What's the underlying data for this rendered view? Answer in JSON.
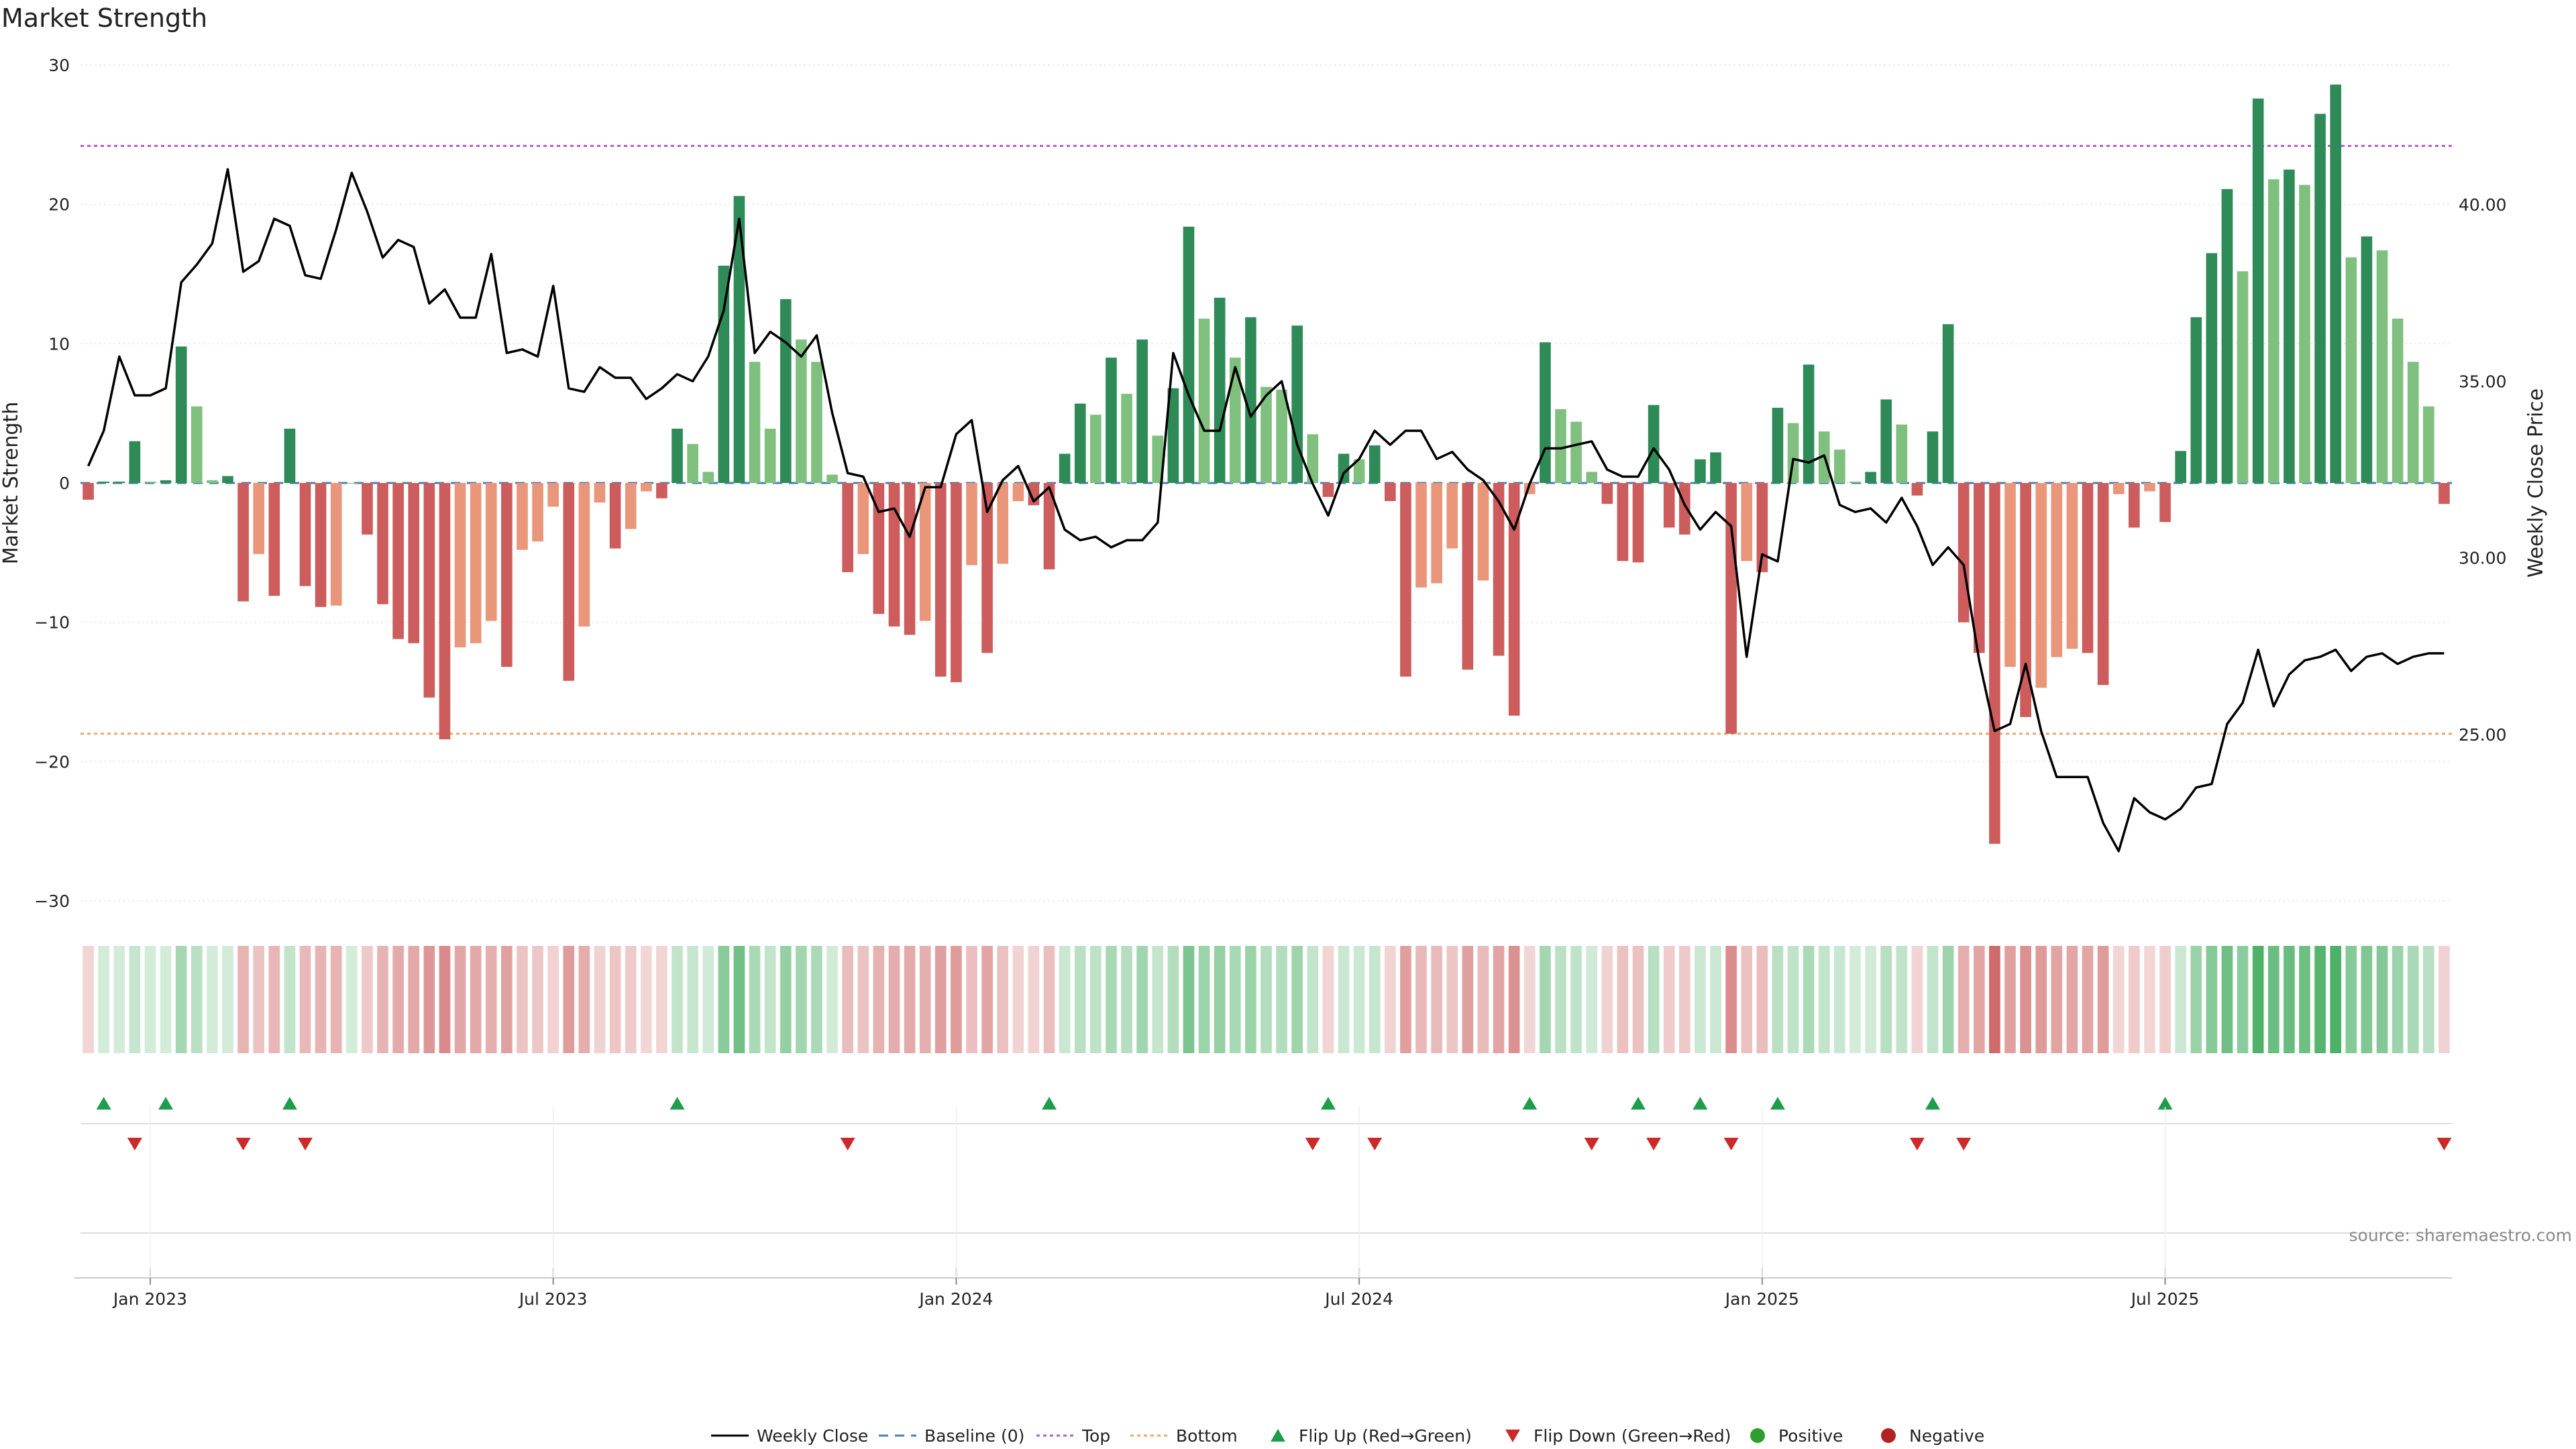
{
  "chart_data": {
    "type": "bar",
    "title": "Market Strength",
    "ylabel_left": "Market Strength",
    "ylabel_right": "Weekly Close Price",
    "ylim_left": [
      -30,
      30
    ],
    "ylim_right": [
      20,
      44
    ],
    "yticks_left": [
      30,
      20,
      10,
      0,
      -10,
      -20,
      -30
    ],
    "yticks_left_labels": [
      "30",
      "20",
      "10",
      "0",
      "−10",
      "−20",
      "−30"
    ],
    "yticks_right": [
      40,
      35,
      30,
      25
    ],
    "yticks_right_labels": [
      "40.00",
      "35.00",
      "30.00",
      "25.00"
    ],
    "xticks": [
      {
        "label": "Jan 2023",
        "index": 4
      },
      {
        "label": "Jul 2023",
        "index": 30
      },
      {
        "label": "Jan 2024",
        "index": 56
      },
      {
        "label": "Jul 2024",
        "index": 82
      },
      {
        "label": "Jan 2025",
        "index": 108
      },
      {
        "label": "Jul 2025",
        "index": 134
      }
    ],
    "top_level": 24.2,
    "bottom_level": -18.0,
    "baseline": 0,
    "strength": [
      -1.2,
      0.1,
      0.1,
      3,
      0.1,
      0.2,
      9.8,
      5.5,
      0.2,
      0.5,
      -8.5,
      -5.1,
      -8.1,
      3.9,
      -7.4,
      -8.9,
      -8.8,
      0,
      -3.7,
      -8.7,
      -11.2,
      -11.5,
      -15.4,
      -18.4,
      -11.8,
      -11.5,
      -9.9,
      -13.2,
      -4.8,
      -4.2,
      -1.7,
      -14.2,
      -10.3,
      -1.4,
      -4.7,
      -3.3,
      -0.6,
      -1.1,
      3.9,
      2.8,
      0.8,
      15.6,
      20.6,
      8.7,
      3.9,
      13.2,
      10.3,
      8.7,
      0.6,
      -6.4,
      -5.1,
      -9.4,
      -10.3,
      -10.9,
      -9.9,
      -13.9,
      -14.3,
      -5.9,
      -12.2,
      -5.8,
      -1.3,
      -1.6,
      -6.2,
      2.1,
      5.7,
      4.9,
      9,
      6.4,
      10.3,
      3.4,
      6.8,
      18.4,
      11.8,
      13.3,
      9,
      11.9,
      6.9,
      6.7,
      11.3,
      3.5,
      -1,
      2.1,
      1.7,
      2.7,
      -1.3,
      -13.9,
      -7.5,
      -7.2,
      -4.7,
      -13.4,
      -7,
      -12.4,
      -16.7,
      -0.8,
      10.1,
      5.3,
      4.4,
      0.8,
      -1.5,
      -5.6,
      -5.7,
      5.6,
      -3.2,
      -3.7,
      1.7,
      2.2,
      -18.0,
      -5.6,
      -6.4,
      5.4,
      4.3,
      8.5,
      3.7,
      2.4,
      0.1,
      0.8,
      6,
      4.2,
      -0.9,
      3.7,
      11.4,
      -10,
      -12.2,
      -25.9,
      -13.2,
      -16.8,
      -14.7,
      -12.5,
      -11.9,
      -12.2,
      -14.5,
      -0.8,
      -3.2,
      -0.6,
      -2.8,
      2.3,
      11.9,
      16.5,
      21.1,
      15.2,
      27.6,
      21.8,
      22.5,
      21.4,
      26.5,
      28.6,
      16.2,
      17.7,
      16.7,
      11.8,
      8.7,
      5.5,
      -1.5
    ],
    "close": [
      32.6,
      33.6,
      35.7,
      34.6,
      34.6,
      34.8,
      37.8,
      38.3,
      38.9,
      41,
      38.1,
      38.4,
      39.6,
      39.4,
      38,
      37.9,
      39.3,
      40.9,
      39.8,
      38.5,
      39,
      38.8,
      37.2,
      37.6,
      36.8,
      36.8,
      38.6,
      35.8,
      35.9,
      35.7,
      37.7,
      34.8,
      34.7,
      35.4,
      35.1,
      35.1,
      34.5,
      34.8,
      35.2,
      35,
      35.7,
      37,
      39.6,
      35.8,
      36.4,
      36.1,
      35.7,
      36.3,
      34.1,
      32.4,
      32.3,
      31.3,
      31.4,
      30.6,
      32,
      32,
      33.5,
      33.9,
      31.3,
      32.2,
      32.6,
      31.6,
      32,
      30.8,
      30.5,
      30.6,
      30.3,
      30.5,
      30.5,
      31,
      35.8,
      34.6,
      33.6,
      33.6,
      35.4,
      34,
      34.6,
      35,
      33.2,
      32.1,
      31.2,
      32.4,
      32.8,
      33.6,
      33.2,
      33.6,
      33.6,
      32.8,
      33,
      32.5,
      32.2,
      31.6,
      30.8,
      32.1,
      33.1,
      33.1,
      33.2,
      33.3,
      32.5,
      32.3,
      32.3,
      33.1,
      32.5,
      31.5,
      30.8,
      31.3,
      30.9,
      27.2,
      30.1,
      29.9,
      32.8,
      32.7,
      32.9,
      31.5,
      31.3,
      31.4,
      31,
      31.7,
      30.9,
      29.8,
      30.3,
      29.8,
      27.1,
      25.1,
      25.3,
      27,
      25.1,
      23.8,
      23.8,
      23.8,
      22.5,
      21.7,
      23.2,
      22.8,
      22.6,
      22.9,
      23.5,
      23.6,
      25.3,
      25.9,
      27.4,
      25.8,
      26.7,
      27.1,
      27.2,
      27.4,
      26.8,
      27.2,
      27.3,
      27,
      27.2,
      27.3,
      27.3
    ],
    "flip_up_indices": [
      1,
      5,
      13,
      38,
      62,
      80,
      93,
      100,
      104,
      109,
      119,
      134
    ],
    "flip_down_indices": [
      3,
      10,
      14,
      49,
      79,
      83,
      97,
      101,
      106,
      118,
      121,
      152
    ],
    "legend": [
      "Weekly Close",
      "Baseline (0)",
      "Top",
      "Bottom",
      "Flip Up (Red→Green)",
      "Flip Down (Green→Red)",
      "Positive",
      "Negative"
    ],
    "legend_placement": "bottom-center",
    "grid": true,
    "source": "source: sharemaestro.com",
    "colors": {
      "strong_positive": "#2e8b57",
      "weak_positive": "#7fc07f",
      "strong_negative": "#cd5c5c",
      "weak_negative": "#e9967a",
      "close_line": "#000000",
      "baseline": "#4a7fb5",
      "top_line": "#b05fc8",
      "bottom_line": "#e9a86a",
      "flip_up": "#1e9e4a",
      "flip_down": "#cc2a2a",
      "positive_dot": "#2e9e2e",
      "negative_dot": "#b22222",
      "grid": "#e6e6e6"
    }
  }
}
